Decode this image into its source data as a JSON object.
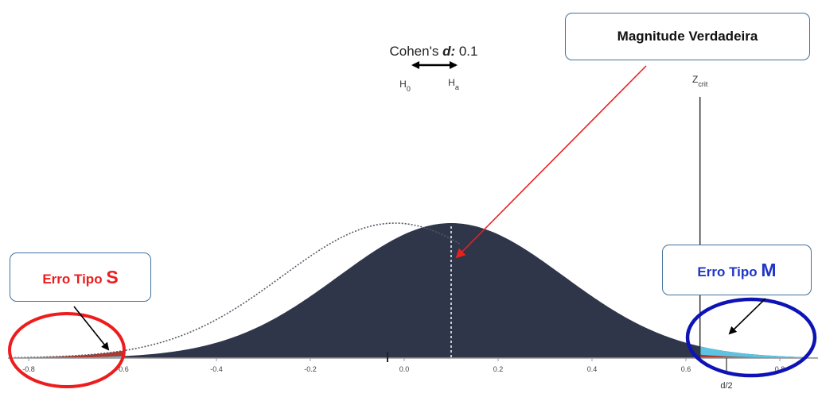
{
  "cohen": {
    "prefix": "Cohen's ",
    "d": "d:",
    "value": " 0.1"
  },
  "h0": {
    "base": "H",
    "sub": "0"
  },
  "ha": {
    "base": "H",
    "sub": "a"
  },
  "zcrit": {
    "base": "Z",
    "sub": "crit"
  },
  "d2": "d/2",
  "callouts": {
    "magnitude": "Magnitude Verdadeira",
    "type_s": {
      "text": "Erro Tipo ",
      "letter": "S"
    },
    "type_m": {
      "text": "Erro Tipo ",
      "letter": "M"
    }
  },
  "chart_data": {
    "type": "area",
    "x_ticks": [
      "-0.8",
      "-0.6",
      "-0.4",
      "-0.2",
      "0.0",
      "0.2",
      "0.4",
      "0.6",
      "0.8"
    ],
    "xlim": [
      -0.83,
      0.88
    ],
    "series": [
      {
        "mean": 0.1,
        "sd": 0.24,
        "style": "filled"
      },
      {
        "mean": -0.02,
        "sd": 0.24,
        "style": "dotted"
      }
    ],
    "critical_value": 0.63,
    "true_effect": 0.1
  },
  "colors": {
    "curve_fill": "#2f364a",
    "rejection_fill": "#b0392e",
    "power_fill": "#5dc3e3",
    "ellipse_s": "#ee1c1c",
    "ellipse_m": "#0e13b5",
    "arrow_red": "#e8211f",
    "callout_border": "#41719c",
    "type_s_text": "#ee1c1c",
    "type_m_text": "#1f35c8"
  }
}
